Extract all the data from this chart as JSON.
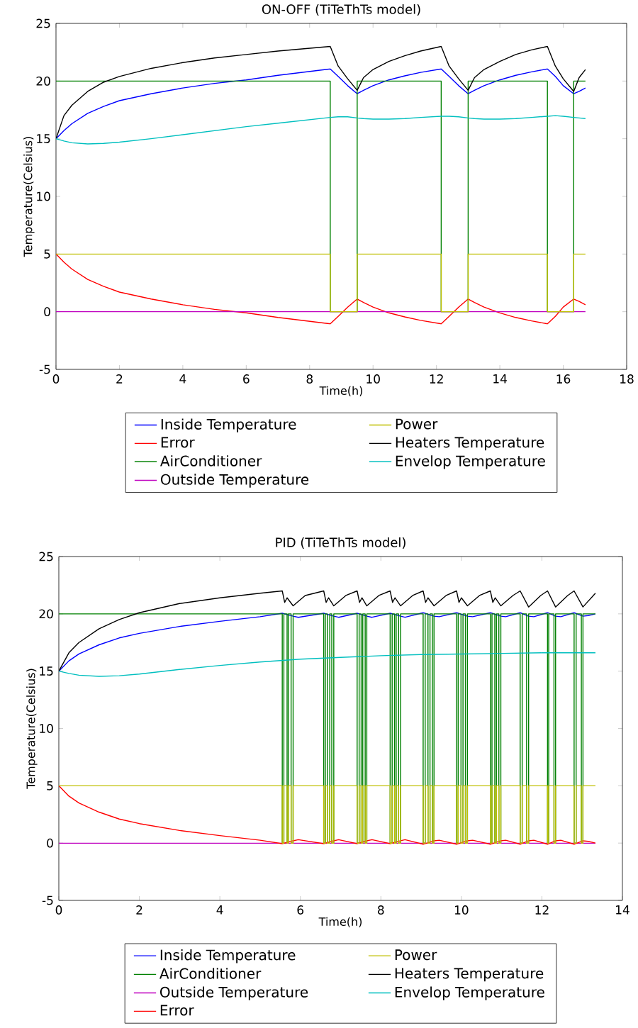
{
  "chart_data": [
    {
      "type": "line",
      "title": "ON-OFF (TiTeThTs model)",
      "xlabel": "Time(h)",
      "ylabel": "Temperature(Celsius)",
      "xlim": [
        0,
        18
      ],
      "xticks": [
        0,
        2,
        4,
        6,
        8,
        10,
        12,
        14,
        16,
        18
      ],
      "ylim": [
        -5,
        25
      ],
      "yticks": [
        -5,
        0,
        5,
        10,
        15,
        20,
        25
      ],
      "legend": "bottom",
      "series": [
        {
          "name": "Inside Temperature",
          "color": "#0000ff",
          "x": [
            0,
            0.25,
            0.5,
            1,
            1.5,
            2,
            3,
            4,
            5,
            6,
            7,
            8.65,
            8.9,
            9.2,
            9.5,
            9.7,
            10,
            10.5,
            11,
            11.5,
            12.15,
            12.4,
            12.7,
            13.0,
            13.2,
            13.5,
            14,
            14.5,
            15,
            15.5,
            15.75,
            16.0,
            16.33,
            16.5,
            16.7
          ],
          "values": [
            15,
            15.7,
            16.3,
            17.2,
            17.8,
            18.3,
            18.9,
            19.4,
            19.8,
            20.1,
            20.5,
            21.05,
            20.4,
            19.6,
            18.9,
            19.2,
            19.6,
            20.1,
            20.45,
            20.75,
            21.05,
            20.4,
            19.6,
            18.9,
            19.2,
            19.6,
            20.1,
            20.5,
            20.8,
            21.05,
            20.4,
            19.6,
            18.9,
            19.1,
            19.4
          ]
        },
        {
          "name": "Error",
          "color": "#ff0000",
          "x": [
            0,
            0.25,
            0.5,
            1,
            1.5,
            2,
            3,
            4,
            5,
            6,
            7,
            8.65,
            8.9,
            9.2,
            9.5,
            9.7,
            10,
            10.5,
            11,
            11.5,
            12.15,
            12.4,
            12.7,
            13.0,
            13.2,
            13.5,
            14,
            14.5,
            15,
            15.5,
            15.75,
            16.0,
            16.33,
            16.5,
            16.7
          ],
          "values": [
            5,
            4.3,
            3.7,
            2.8,
            2.2,
            1.7,
            1.1,
            0.6,
            0.2,
            -0.1,
            -0.5,
            -1.05,
            -0.4,
            0.4,
            1.1,
            0.8,
            0.4,
            -0.1,
            -0.45,
            -0.75,
            -1.05,
            -0.4,
            0.4,
            1.1,
            0.8,
            0.4,
            -0.1,
            -0.5,
            -0.8,
            -1.05,
            -0.4,
            0.4,
            1.1,
            0.9,
            0.6
          ]
        },
        {
          "name": "AirConditioner",
          "color": "#008000",
          "type": "step",
          "x": [
            0,
            8.65,
            9.5,
            12.15,
            13.0,
            15.5,
            16.33,
            16.7
          ],
          "values": [
            20,
            0,
            20,
            0,
            20,
            0,
            20,
            20
          ]
        },
        {
          "name": "Outside Temperature",
          "color": "#bf00bf",
          "x": [
            0,
            16.7
          ],
          "values": [
            0,
            0
          ]
        },
        {
          "name": "Power",
          "color": "#bfbf00",
          "type": "step",
          "x": [
            0,
            8.65,
            9.5,
            12.15,
            13.0,
            15.5,
            16.33,
            16.7
          ],
          "values": [
            5,
            0,
            5,
            0,
            5,
            0,
            5,
            5
          ]
        },
        {
          "name": "Heaters Temperature",
          "color": "#000000",
          "x": [
            0,
            0.25,
            0.5,
            1,
            1.5,
            2,
            3,
            4,
            5,
            6,
            7,
            8.65,
            8.9,
            9.2,
            9.5,
            9.7,
            10,
            10.5,
            11,
            11.5,
            12.15,
            12.4,
            12.7,
            13.0,
            13.2,
            13.5,
            14,
            14.5,
            15,
            15.5,
            15.75,
            16.0,
            16.33,
            16.5,
            16.7
          ],
          "values": [
            15,
            17.0,
            17.9,
            19.1,
            19.9,
            20.4,
            21.1,
            21.6,
            22.0,
            22.3,
            22.6,
            23.0,
            21.3,
            20.2,
            19.2,
            20.3,
            21.0,
            21.7,
            22.2,
            22.6,
            23.0,
            21.3,
            20.2,
            19.2,
            20.3,
            21.0,
            21.7,
            22.3,
            22.7,
            23.0,
            21.3,
            20.2,
            19.1,
            20.3,
            21.0
          ]
        },
        {
          "name": "Envelop Temperature",
          "color": "#00bfbf",
          "x": [
            0,
            0.25,
            0.5,
            1,
            1.5,
            2,
            3,
            4,
            5,
            6,
            7,
            8.65,
            8.9,
            9.2,
            9.5,
            9.7,
            10,
            10.5,
            11,
            11.5,
            12.15,
            12.4,
            12.7,
            13.0,
            13.2,
            13.5,
            14,
            14.5,
            15,
            15.5,
            15.75,
            16.0,
            16.33,
            16.5,
            16.7
          ],
          "values": [
            15,
            14.8,
            14.65,
            14.55,
            14.6,
            14.7,
            15.0,
            15.35,
            15.7,
            16.05,
            16.35,
            16.85,
            16.9,
            16.9,
            16.8,
            16.75,
            16.7,
            16.7,
            16.75,
            16.85,
            16.95,
            16.95,
            16.9,
            16.8,
            16.75,
            16.7,
            16.7,
            16.75,
            16.85,
            16.95,
            17.0,
            16.95,
            16.85,
            16.8,
            16.75
          ]
        }
      ]
    },
    {
      "type": "line",
      "title": "PID (TiTeThTs model)",
      "xlabel": "Time(h)",
      "ylabel": "Temperature(Celsius)",
      "xlim": [
        0,
        14
      ],
      "xticks": [
        0,
        2,
        4,
        6,
        8,
        10,
        12,
        14
      ],
      "ylim": [
        -5,
        25
      ],
      "yticks": [
        -5,
        0,
        5,
        10,
        15,
        20,
        25
      ],
      "legend": "bottom",
      "series": [
        {
          "name": "Inside Temperature",
          "color": "#0000ff",
          "x": [
            0,
            0.25,
            0.5,
            1,
            1.5,
            2,
            3,
            4,
            5,
            5.55,
            5.82,
            5.95,
            6.58,
            6.83,
            6.95,
            7.41,
            7.65,
            7.78,
            8.23,
            8.49,
            8.6,
            9.05,
            9.32,
            9.45,
            9.88,
            10.15,
            10.28,
            10.72,
            10.98,
            11.1,
            11.46,
            11.67,
            11.8,
            12.14,
            12.34,
            12.47,
            12.8,
            13.02,
            13.15,
            13.33
          ],
          "values": [
            15,
            15.9,
            16.5,
            17.3,
            17.9,
            18.3,
            18.9,
            19.35,
            19.75,
            20.05,
            19.8,
            19.7,
            20.05,
            19.8,
            19.7,
            20.05,
            19.8,
            19.7,
            20.05,
            19.8,
            19.7,
            20.1,
            19.8,
            19.75,
            20.1,
            19.8,
            19.75,
            20.1,
            19.8,
            19.75,
            20.1,
            19.8,
            19.75,
            20.1,
            19.8,
            19.75,
            20.1,
            19.8,
            19.85,
            20.0
          ]
        },
        {
          "name": "AirConditioner",
          "color": "#008000",
          "type": "step",
          "x": [
            0,
            5.55,
            5.59,
            5.67,
            5.7,
            5.77,
            5.82,
            6.58,
            6.62,
            6.67,
            6.73,
            6.78,
            6.83,
            7.41,
            7.46,
            7.51,
            7.55,
            7.61,
            7.65,
            8.23,
            8.28,
            8.34,
            8.38,
            8.44,
            8.49,
            9.05,
            9.1,
            9.17,
            9.22,
            9.28,
            9.32,
            9.88,
            9.92,
            9.99,
            10.04,
            10.1,
            10.15,
            10.72,
            10.76,
            10.83,
            10.87,
            10.93,
            10.98,
            11.46,
            11.51,
            11.62,
            11.67,
            12.14,
            12.17,
            12.3,
            12.34,
            12.8,
            12.85,
            12.98,
            13.02,
            13.33
          ],
          "values": [
            20,
            0,
            20,
            0,
            20,
            0,
            20,
            0,
            20,
            0,
            20,
            0,
            20,
            0,
            20,
            0,
            20,
            0,
            20,
            0,
            20,
            0,
            20,
            0,
            20,
            0,
            20,
            0,
            20,
            0,
            20,
            0,
            20,
            0,
            20,
            0,
            20,
            0,
            20,
            0,
            20,
            0,
            20,
            0,
            20,
            0,
            20,
            0,
            20,
            0,
            20,
            0,
            20,
            0,
            20,
            20
          ]
        },
        {
          "name": "Outside Temperature",
          "color": "#bf00bf",
          "x": [
            0,
            13.33
          ],
          "values": [
            0,
            0
          ]
        },
        {
          "name": "Error",
          "color": "#ff0000",
          "x": [
            0,
            0.25,
            0.5,
            1,
            1.5,
            2,
            3,
            4,
            5,
            5.55,
            5.82,
            5.95,
            6.58,
            6.83,
            6.95,
            7.41,
            7.65,
            7.78,
            8.23,
            8.49,
            8.6,
            9.05,
            9.32,
            9.45,
            9.88,
            10.15,
            10.28,
            10.72,
            10.98,
            11.1,
            11.46,
            11.67,
            11.8,
            12.14,
            12.34,
            12.47,
            12.8,
            13.02,
            13.15,
            13.33
          ],
          "values": [
            5,
            4.1,
            3.5,
            2.7,
            2.1,
            1.7,
            1.1,
            0.65,
            0.25,
            -0.05,
            0.2,
            0.3,
            -0.05,
            0.2,
            0.3,
            -0.05,
            0.2,
            0.3,
            -0.05,
            0.2,
            0.3,
            -0.1,
            0.2,
            0.25,
            -0.1,
            0.2,
            0.25,
            -0.1,
            0.2,
            0.25,
            -0.1,
            0.2,
            0.25,
            -0.1,
            0.2,
            0.25,
            -0.1,
            0.2,
            0.15,
            0
          ]
        },
        {
          "name": "Power",
          "color": "#bfbf00",
          "type": "step",
          "x": [
            0,
            5.55,
            5.59,
            5.67,
            5.7,
            5.77,
            5.82,
            6.58,
            6.62,
            6.67,
            6.73,
            6.78,
            6.83,
            7.41,
            7.46,
            7.51,
            7.55,
            7.61,
            7.65,
            8.23,
            8.28,
            8.34,
            8.38,
            8.44,
            8.49,
            9.05,
            9.1,
            9.17,
            9.22,
            9.28,
            9.32,
            9.88,
            9.92,
            9.99,
            10.04,
            10.1,
            10.15,
            10.72,
            10.76,
            10.83,
            10.87,
            10.93,
            10.98,
            11.46,
            11.51,
            11.62,
            11.67,
            12.14,
            12.17,
            12.3,
            12.34,
            12.8,
            12.85,
            12.98,
            13.02,
            13.33
          ],
          "values": [
            5,
            0,
            5,
            0,
            5,
            0,
            5,
            0,
            5,
            0,
            5,
            0,
            5,
            0,
            5,
            0,
            5,
            0,
            5,
            0,
            5,
            0,
            5,
            0,
            5,
            0,
            5,
            0,
            5,
            0,
            5,
            0,
            5,
            0,
            5,
            0,
            5,
            0,
            5,
            0,
            5,
            0,
            5,
            0,
            5,
            0,
            5,
            0,
            5,
            0,
            5,
            0,
            5,
            0,
            5,
            5
          ]
        },
        {
          "name": "Heaters Temperature",
          "color": "#000000",
          "x": [
            0,
            0.25,
            0.5,
            1,
            1.5,
            2,
            3,
            4,
            5,
            5.55,
            5.61,
            5.67,
            5.82,
            6.12,
            6.58,
            6.64,
            6.7,
            6.83,
            7.13,
            7.41,
            7.47,
            7.53,
            7.65,
            7.95,
            8.23,
            8.29,
            8.35,
            8.49,
            8.79,
            9.05,
            9.11,
            9.17,
            9.32,
            9.62,
            9.88,
            9.94,
            10.0,
            10.15,
            10.45,
            10.72,
            10.78,
            10.84,
            10.98,
            11.28,
            11.46,
            11.67,
            11.97,
            12.14,
            12.34,
            12.64,
            12.8,
            13.02,
            13.33
          ],
          "values": [
            15,
            16.6,
            17.5,
            18.7,
            19.5,
            20.1,
            20.9,
            21.4,
            21.8,
            22.0,
            21.0,
            21.4,
            20.7,
            21.6,
            22.0,
            21.0,
            21.4,
            20.7,
            21.6,
            22.0,
            21.0,
            21.4,
            20.7,
            21.6,
            22.0,
            21.0,
            21.4,
            20.7,
            21.6,
            22.0,
            21.0,
            21.4,
            20.7,
            21.6,
            22.0,
            21.0,
            21.4,
            20.7,
            21.6,
            22.0,
            21.0,
            21.4,
            20.7,
            21.6,
            22.0,
            20.6,
            21.6,
            22.0,
            20.6,
            21.6,
            22.0,
            20.6,
            21.8
          ]
        },
        {
          "name": "Envelop Temperature",
          "color": "#00bfbf",
          "x": [
            0,
            0.25,
            0.5,
            1,
            1.5,
            2,
            3,
            4,
            5,
            6,
            7,
            8,
            9,
            10,
            11,
            12,
            13.33
          ],
          "values": [
            15,
            14.8,
            14.65,
            14.55,
            14.6,
            14.75,
            15.15,
            15.5,
            15.8,
            16.05,
            16.2,
            16.35,
            16.45,
            16.5,
            16.55,
            16.6,
            16.6
          ]
        }
      ]
    }
  ]
}
